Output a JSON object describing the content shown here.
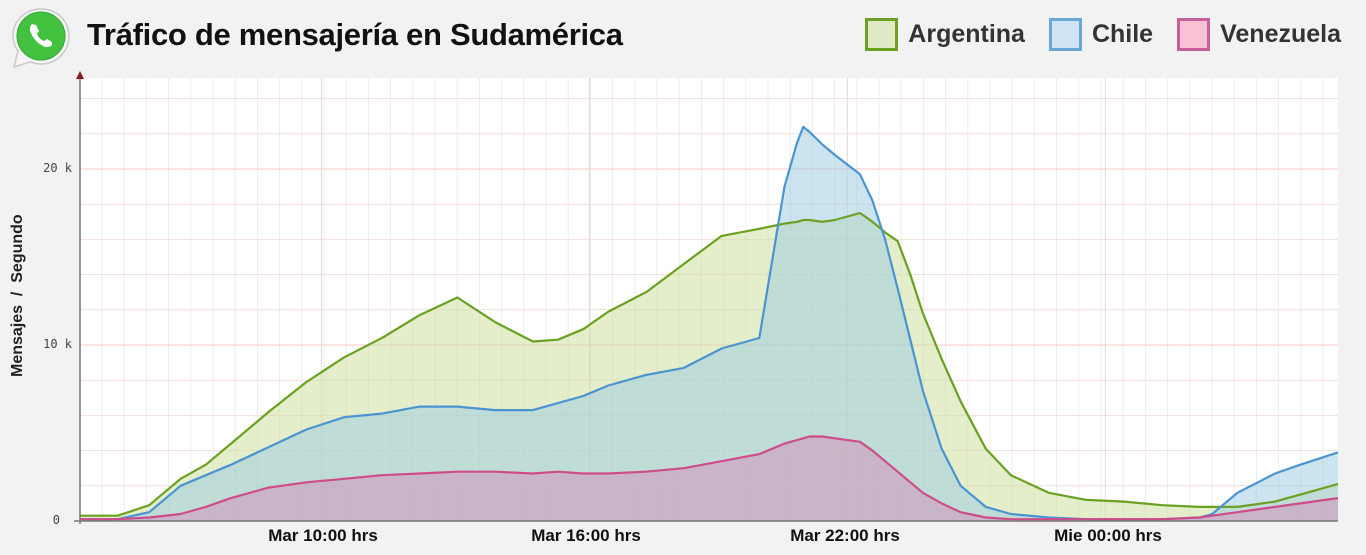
{
  "header": {
    "title": "Tráfico de mensajería en Sudamérica",
    "logo_icon": "whatsapp-logo-icon"
  },
  "legend": [
    {
      "label": "Argentina",
      "fill": "#dfe9c8",
      "stroke": "#6aa121"
    },
    {
      "label": "Chile",
      "fill": "#cfe3f5",
      "stroke": "#4a94d1"
    },
    {
      "label": "Venezuela",
      "fill": "#f9c1d4",
      "stroke": "#cf4c8a"
    }
  ],
  "axes": {
    "ylabel": "Mensajes  /  Segundo",
    "yticks": [
      {
        "label": "0",
        "value": 0
      },
      {
        "label": "10 k",
        "value": 10
      },
      {
        "label": "20 k",
        "value": 20
      }
    ],
    "xticks": [
      {
        "label": "Mar 10:00 hrs",
        "x": 0.192
      },
      {
        "label": "Mar 16:00 hrs",
        "x": 0.405
      },
      {
        "label": "Mar 22:00 hrs",
        "x": 0.61
      },
      {
        "label": "Mie 00:00 hrs",
        "x": 0.815
      }
    ]
  },
  "chart_data": {
    "type": "area",
    "title": "Tráfico de mensajería en Sudamérica",
    "xlabel": "",
    "ylabel": "Mensajes / Segundo",
    "ylim": [
      0,
      25
    ],
    "y_unit": "k",
    "grid": true,
    "legend_position": "top-right",
    "x_ticks": [
      "Mar 10:00 hrs",
      "Mar 16:00 hrs",
      "Mar 22:00 hrs",
      "Mie 00:00 hrs"
    ],
    "x": [
      0.0,
      0.03,
      0.055,
      0.08,
      0.1,
      0.12,
      0.15,
      0.18,
      0.21,
      0.24,
      0.27,
      0.3,
      0.33,
      0.36,
      0.38,
      0.4,
      0.42,
      0.45,
      0.48,
      0.51,
      0.54,
      0.56,
      0.57,
      0.575,
      0.58,
      0.59,
      0.6,
      0.62,
      0.63,
      0.64,
      0.65,
      0.66,
      0.67,
      0.685,
      0.7,
      0.72,
      0.74,
      0.77,
      0.8,
      0.83,
      0.86,
      0.89,
      0.9,
      0.92,
      0.95,
      0.97,
      1.0
    ],
    "series": [
      {
        "name": "Argentina",
        "values": [
          0.3,
          0.3,
          0.9,
          2.4,
          3.2,
          4.4,
          6.2,
          7.9,
          9.3,
          10.4,
          11.7,
          12.7,
          11.3,
          10.2,
          10.3,
          10.9,
          11.9,
          13.0,
          14.6,
          16.2,
          16.6,
          16.9,
          17.0,
          17.1,
          17.1,
          17.0,
          17.1,
          17.5,
          17.0,
          16.4,
          15.9,
          14.0,
          11.8,
          9.2,
          6.8,
          4.1,
          2.6,
          1.6,
          1.2,
          1.1,
          0.9,
          0.8,
          0.8,
          0.8,
          1.1,
          1.5,
          2.1
        ]
      },
      {
        "name": "Chile",
        "values": [
          0.1,
          0.1,
          0.5,
          2.0,
          2.6,
          3.2,
          4.2,
          5.2,
          5.9,
          6.1,
          6.5,
          6.5,
          6.3,
          6.3,
          6.7,
          7.1,
          7.7,
          8.3,
          8.7,
          9.8,
          10.4,
          19.0,
          21.5,
          22.4,
          22.1,
          21.4,
          20.8,
          19.7,
          18.2,
          16.0,
          13.2,
          10.3,
          7.4,
          4.1,
          2.0,
          0.8,
          0.4,
          0.2,
          0.1,
          0.1,
          0.1,
          0.2,
          0.4,
          1.6,
          2.7,
          3.2,
          3.9
        ]
      },
      {
        "name": "Venezuela",
        "values": [
          0.1,
          0.1,
          0.2,
          0.4,
          0.8,
          1.3,
          1.9,
          2.2,
          2.4,
          2.6,
          2.7,
          2.8,
          2.8,
          2.7,
          2.8,
          2.7,
          2.7,
          2.8,
          3.0,
          3.4,
          3.8,
          4.4,
          4.6,
          4.7,
          4.8,
          4.8,
          4.7,
          4.5,
          4.0,
          3.4,
          2.8,
          2.2,
          1.6,
          1.0,
          0.5,
          0.2,
          0.1,
          0.1,
          0.1,
          0.1,
          0.1,
          0.2,
          0.3,
          0.5,
          0.8,
          1.0,
          1.3
        ]
      }
    ]
  }
}
